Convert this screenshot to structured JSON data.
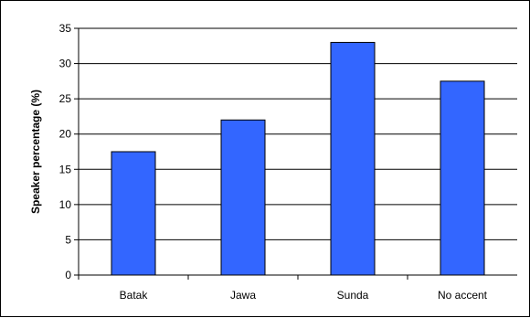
{
  "chart_data": {
    "type": "bar",
    "title": "",
    "xlabel": "",
    "ylabel": "Speaker percentage (%)",
    "categories": [
      "Batak",
      "Jawa",
      "Sunda",
      "No accent"
    ],
    "values": [
      17.5,
      22,
      33,
      27.5
    ],
    "ylim": [
      0,
      35
    ],
    "yticks": [
      0,
      5,
      10,
      15,
      20,
      25,
      30,
      35
    ],
    "grid": true,
    "legend": "none",
    "colors": {
      "bar": "#3366ff",
      "bar_edge": "#000000",
      "grid": "#000000",
      "axis": "#000000"
    }
  }
}
